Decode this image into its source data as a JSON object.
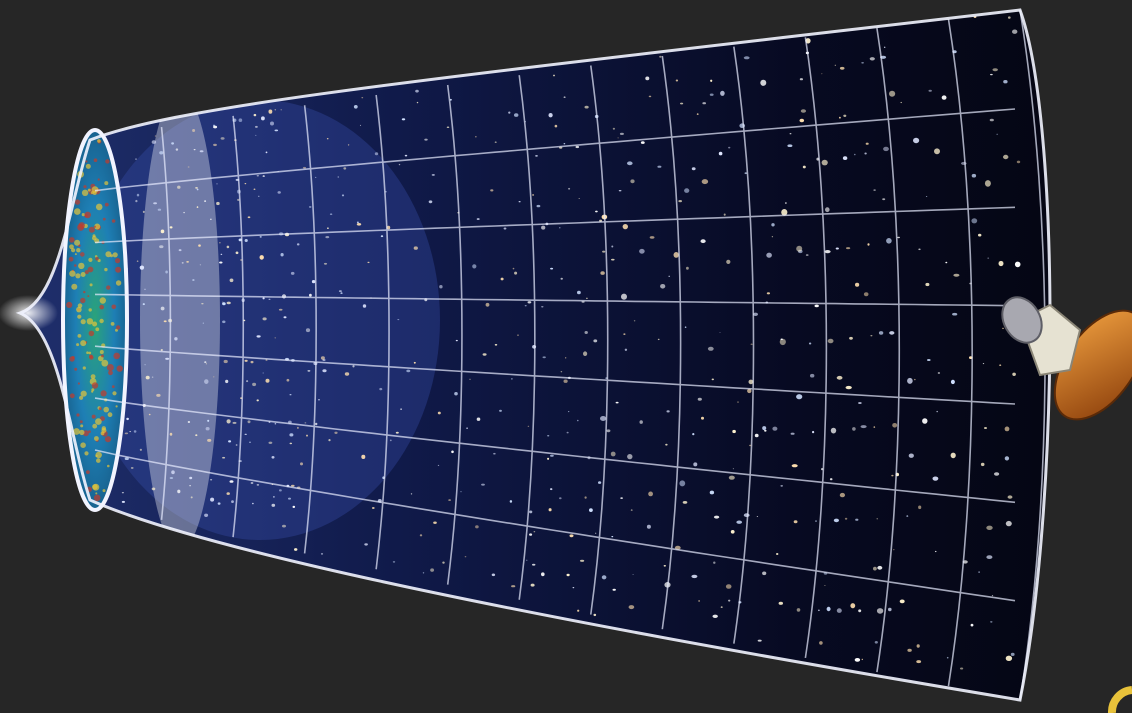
{
  "scene": {
    "subject": "universe-expansion-funnel",
    "background_color": "#262626",
    "funnel_shell_color": "#f2f4ff",
    "cmb_colors": [
      "#1e7fb5",
      "#2aa37a",
      "#e3c43a",
      "#c43a2a"
    ],
    "space_color": "#060818",
    "nebula_color": "#3a4fb0",
    "probe_panel_color": "#d07a1e",
    "accent_mark_color": "#e8c23a"
  }
}
